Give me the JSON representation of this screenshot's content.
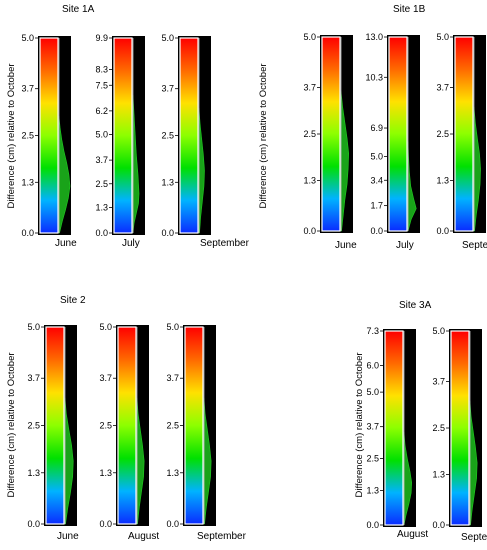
{
  "chart_data": [
    {
      "type": "heatmap",
      "title": "Site 1A",
      "ylabel": "Difference (cm) relative to October",
      "colorbar": [
        "#0a2cff",
        "#00b3ff",
        "#00e000",
        "#8cff00",
        "#ffe100",
        "#ff6a00",
        "#ff0000"
      ],
      "panels": [
        {
          "label": "June",
          "ylim": [
            0,
            5.0
          ],
          "ticks": [
            "0.0",
            "1.3",
            "2.5",
            "3.7",
            "5.0"
          ],
          "profile_y": [
            0.0,
            0.3,
            0.6,
            0.9,
            1.2,
            1.5,
            1.8,
            2.1,
            2.4,
            2.7,
            3.0
          ],
          "profile_w": [
            0.05,
            0.3,
            0.6,
            0.85,
            1.0,
            0.9,
            0.7,
            0.45,
            0.25,
            0.1,
            0.0
          ]
        },
        {
          "label": "July",
          "ylim": [
            0,
            9.9
          ],
          "ticks": [
            "0.0",
            "1.3",
            "2.5",
            "3.7",
            "5.0",
            "6.2",
            "7.5",
            "8.3",
            "9.9"
          ],
          "profile_y": [
            0.0,
            0.5,
            1.0,
            1.5,
            2.0,
            3.0,
            4.0,
            5.0,
            6.0,
            7.0
          ],
          "profile_w": [
            0.0,
            0.1,
            0.3,
            0.5,
            0.55,
            0.45,
            0.3,
            0.2,
            0.1,
            0.0
          ]
        },
        {
          "label": "September",
          "ylim": [
            0,
            5.0
          ],
          "ticks": [
            "0.0",
            "1.3",
            "2.5",
            "3.7",
            "5.0"
          ],
          "profile_y": [
            0.0,
            0.4,
            0.8,
            1.2,
            1.6,
            2.0,
            2.4,
            2.8,
            3.2
          ],
          "profile_w": [
            0.05,
            0.15,
            0.3,
            0.45,
            0.5,
            0.4,
            0.25,
            0.1,
            0.0
          ]
        }
      ]
    },
    {
      "type": "heatmap",
      "title": "Site 1B",
      "ylabel": "Difference  (cm) relative to October",
      "colorbar": [
        "#0a2cff",
        "#00b3ff",
        "#00e000",
        "#8cff00",
        "#ffe100",
        "#ff6a00",
        "#ff0000"
      ],
      "panels": [
        {
          "label": "June",
          "ylim": [
            0,
            5.0
          ],
          "ticks": [
            "0.0",
            "1.3",
            "2.5",
            "3.7",
            "5.0"
          ],
          "profile_y": [
            0.0,
            0.4,
            0.8,
            1.2,
            1.6,
            2.0,
            2.4,
            2.8,
            3.2,
            3.6
          ],
          "profile_w": [
            0.05,
            0.2,
            0.35,
            0.55,
            0.65,
            0.7,
            0.55,
            0.35,
            0.15,
            0.0
          ]
        },
        {
          "label": "July",
          "ylim": [
            0,
            13.0
          ],
          "ticks": [
            "0.0",
            "1.7",
            "3.4",
            "5.0",
            "6.9",
            "10.3",
            "13.0"
          ],
          "profile_y": [
            0.0,
            0.8,
            1.5,
            2.2,
            3.0,
            4.0,
            5.0,
            6.0
          ],
          "profile_w": [
            0.0,
            0.3,
            0.75,
            0.5,
            0.25,
            0.12,
            0.05,
            0.0
          ]
        },
        {
          "label": "September",
          "ylim": [
            0,
            5.0
          ],
          "ticks": [
            "0.0",
            "1.3",
            "2.5",
            "3.7",
            "5.0"
          ],
          "profile_y": [
            0.0,
            0.4,
            0.8,
            1.2,
            1.6,
            2.0,
            2.4,
            2.8,
            3.2
          ],
          "profile_w": [
            0.05,
            0.2,
            0.4,
            0.55,
            0.6,
            0.5,
            0.3,
            0.12,
            0.0
          ]
        }
      ]
    },
    {
      "type": "heatmap",
      "title": "Site 2",
      "ylabel": "Difference (cm) relative to October",
      "colorbar": [
        "#0a2cff",
        "#00b3ff",
        "#00e000",
        "#8cff00",
        "#ffe100",
        "#ff6a00",
        "#ff0000"
      ],
      "panels": [
        {
          "label": "June",
          "ylim": [
            0,
            5.0
          ],
          "ticks": [
            "0.0",
            "1.3",
            "2.5",
            "3.7",
            "5.0"
          ],
          "profile_y": [
            0.0,
            0.4,
            0.8,
            1.2,
            1.6,
            2.0,
            2.4,
            2.8,
            3.2
          ],
          "profile_w": [
            0.05,
            0.25,
            0.5,
            0.7,
            0.75,
            0.6,
            0.35,
            0.12,
            0.0
          ]
        },
        {
          "label": "August",
          "ylim": [
            0,
            5.0
          ],
          "ticks": [
            "0.0",
            "1.3",
            "2.5",
            "3.7",
            "5.0"
          ],
          "profile_y": [
            0.0,
            0.4,
            0.8,
            1.2,
            1.6,
            2.0,
            2.4,
            2.8,
            3.2
          ],
          "profile_w": [
            0.05,
            0.2,
            0.4,
            0.6,
            0.65,
            0.5,
            0.3,
            0.1,
            0.0
          ]
        },
        {
          "label": "September",
          "ylim": [
            0,
            5.0
          ],
          "ticks": [
            "0.0",
            "1.3",
            "2.5",
            "3.7",
            "5.0"
          ],
          "profile_y": [
            0.0,
            0.4,
            0.8,
            1.2,
            1.6,
            2.0,
            2.4,
            2.8,
            3.2
          ],
          "profile_w": [
            0.05,
            0.2,
            0.4,
            0.6,
            0.65,
            0.5,
            0.3,
            0.1,
            0.0
          ]
        }
      ]
    },
    {
      "type": "heatmap",
      "title": "Site 3A",
      "ylabel": "Difference (cm) relative to October",
      "colorbar": [
        "#0a2cff",
        "#00b3ff",
        "#00e000",
        "#8cff00",
        "#ffe100",
        "#ff6a00",
        "#ff0000"
      ],
      "panels": [
        {
          "label": "August",
          "ylim": [
            0,
            7.3
          ],
          "ticks": [
            "0.0",
            "1.3",
            "2.5",
            "3.7",
            "5.0",
            "6.0",
            "7.3"
          ],
          "profile_y": [
            0.0,
            0.4,
            0.8,
            1.2,
            1.6,
            2.0,
            2.5,
            3.0,
            3.5
          ],
          "profile_w": [
            0.0,
            0.2,
            0.45,
            0.65,
            0.7,
            0.55,
            0.3,
            0.1,
            0.0
          ]
        },
        {
          "label": "September",
          "ylim": [
            0,
            5.0
          ],
          "ticks": [
            "0.0",
            "1.3",
            "2.5",
            "3.7",
            "5.0"
          ],
          "profile_y": [
            0.0,
            0.4,
            0.8,
            1.2,
            1.6,
            2.0,
            2.4,
            2.8,
            3.2
          ],
          "profile_w": [
            0.05,
            0.2,
            0.4,
            0.6,
            0.65,
            0.5,
            0.3,
            0.1,
            0.0
          ]
        }
      ]
    }
  ]
}
